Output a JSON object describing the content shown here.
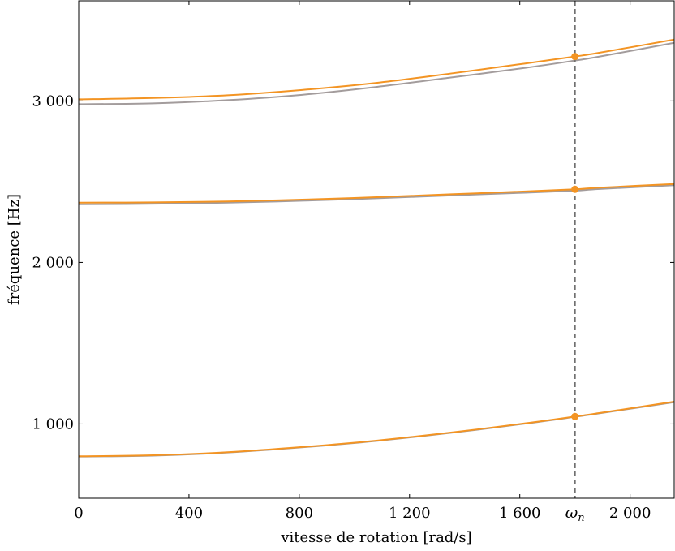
{
  "chart_data": {
    "type": "line",
    "title": "",
    "xlabel": "vitesse de rotation [rad/s]",
    "ylabel": "fréquence [Hz]",
    "xlim": [
      0,
      2160
    ],
    "ylim": [
      540,
      3620
    ],
    "grid": false,
    "legend": "none",
    "x_ticks": [
      {
        "value": 0,
        "label": "0"
      },
      {
        "value": 400,
        "label": "400"
      },
      {
        "value": 800,
        "label": "800"
      },
      {
        "value": 1200,
        "label": "1 200"
      },
      {
        "value": 1600,
        "label": "1 600"
      },
      {
        "value": 2000,
        "label": "2 000"
      }
    ],
    "y_ticks": [
      {
        "value": 1000,
        "label": "1 000"
      },
      {
        "value": 2000,
        "label": "2 000"
      },
      {
        "value": 3000,
        "label": "3 000"
      }
    ],
    "marker_line": {
      "x": 1800,
      "label": "ω",
      "label_sub": "n",
      "color": "#707070"
    },
    "x": [
      0,
      270,
      540,
      810,
      1080,
      1350,
      1620,
      1800,
      1890,
      2160
    ],
    "series": [
      {
        "color": "#a39c9c",
        "values": [
          2980,
          2985,
          3005,
          3038,
          3087,
          3145,
          3205,
          3250,
          3275,
          3360
        ]
      },
      {
        "color": "#f39423",
        "values": [
          3010,
          3018,
          3035,
          3068,
          3112,
          3170,
          3232,
          3275,
          3299,
          3380
        ]
      },
      {
        "color": "#a39c9c",
        "values": [
          2360,
          2363,
          2370,
          2382,
          2397,
          2415,
          2432,
          2444,
          2455,
          2478
        ]
      },
      {
        "color": "#f39423",
        "values": [
          2370,
          2372,
          2378,
          2389,
          2404,
          2422,
          2440,
          2453,
          2463,
          2486
        ]
      },
      {
        "color": "#a39c9c",
        "values": [
          798,
          804,
          823,
          855,
          895,
          945,
          1002,
          1044,
          1066,
          1135
        ]
      },
      {
        "color": "#f39423",
        "values": [
          800,
          806,
          825,
          857,
          897,
          947,
          1004,
          1046,
          1068,
          1138
        ]
      }
    ],
    "points": [
      {
        "x": 1800,
        "y": 3275,
        "color": "#f39423"
      },
      {
        "x": 1800,
        "y": 2453,
        "color": "#f39423"
      },
      {
        "x": 1800,
        "y": 1046,
        "color": "#f39423"
      }
    ]
  }
}
